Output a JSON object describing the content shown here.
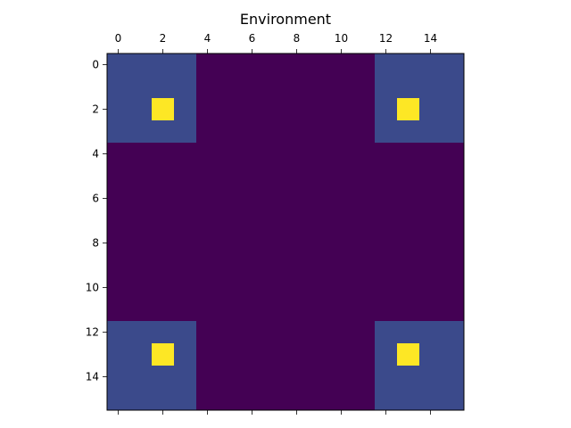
{
  "chart_data": {
    "type": "heatmap",
    "title": "Environment",
    "xlabel": "",
    "ylabel": "",
    "x_ticks": [
      0,
      2,
      4,
      6,
      8,
      10,
      12,
      14
    ],
    "y_ticks": [
      0,
      2,
      4,
      6,
      8,
      10,
      12,
      14
    ],
    "xlim": [
      -0.5,
      15.5
    ],
    "ylim": [
      15.5,
      -0.5
    ],
    "x_axis_position": "top",
    "grid": false,
    "colormap": "viridis",
    "value_colors": {
      "0": "#440154",
      "1": "#3b4a8b",
      "2": "#fde725"
    },
    "grid_values": [
      [
        1,
        1,
        1,
        1,
        0,
        0,
        0,
        0,
        0,
        0,
        0,
        0,
        1,
        1,
        1,
        1
      ],
      [
        1,
        1,
        1,
        1,
        0,
        0,
        0,
        0,
        0,
        0,
        0,
        0,
        1,
        1,
        1,
        1
      ],
      [
        1,
        1,
        2,
        1,
        0,
        0,
        0,
        0,
        0,
        0,
        0,
        0,
        1,
        2,
        1,
        1
      ],
      [
        1,
        1,
        1,
        1,
        0,
        0,
        0,
        0,
        0,
        0,
        0,
        0,
        1,
        1,
        1,
        1
      ],
      [
        0,
        0,
        0,
        0,
        0,
        0,
        0,
        0,
        0,
        0,
        0,
        0,
        0,
        0,
        0,
        0
      ],
      [
        0,
        0,
        0,
        0,
        0,
        0,
        0,
        0,
        0,
        0,
        0,
        0,
        0,
        0,
        0,
        0
      ],
      [
        0,
        0,
        0,
        0,
        0,
        0,
        0,
        0,
        0,
        0,
        0,
        0,
        0,
        0,
        0,
        0
      ],
      [
        0,
        0,
        0,
        0,
        0,
        0,
        0,
        0,
        0,
        0,
        0,
        0,
        0,
        0,
        0,
        0
      ],
      [
        0,
        0,
        0,
        0,
        0,
        0,
        0,
        0,
        0,
        0,
        0,
        0,
        0,
        0,
        0,
        0
      ],
      [
        0,
        0,
        0,
        0,
        0,
        0,
        0,
        0,
        0,
        0,
        0,
        0,
        0,
        0,
        0,
        0
      ],
      [
        0,
        0,
        0,
        0,
        0,
        0,
        0,
        0,
        0,
        0,
        0,
        0,
        0,
        0,
        0,
        0
      ],
      [
        0,
        0,
        0,
        0,
        0,
        0,
        0,
        0,
        0,
        0,
        0,
        0,
        0,
        0,
        0,
        0
      ],
      [
        1,
        1,
        1,
        1,
        0,
        0,
        0,
        0,
        0,
        0,
        0,
        0,
        1,
        1,
        1,
        1
      ],
      [
        1,
        1,
        2,
        1,
        0,
        0,
        0,
        0,
        0,
        0,
        0,
        0,
        1,
        2,
        1,
        1
      ],
      [
        1,
        1,
        1,
        1,
        0,
        0,
        0,
        0,
        0,
        0,
        0,
        0,
        1,
        1,
        1,
        1
      ],
      [
        1,
        1,
        1,
        1,
        0,
        0,
        0,
        0,
        0,
        0,
        0,
        0,
        1,
        1,
        1,
        1
      ]
    ]
  }
}
